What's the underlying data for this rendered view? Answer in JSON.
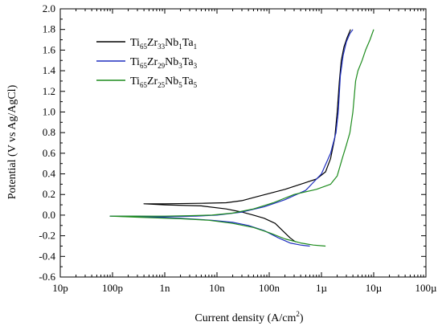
{
  "chart_data": {
    "type": "line",
    "title": "",
    "xlabel": "Current density (A/cm²)",
    "xlabel_main": "Current density (A/cm",
    "xlabel_sup": "2",
    "xlabel_end": ")",
    "ylabel": "Potential (V vs Ag/AgCl)",
    "x_scale": "log",
    "xlim": [
      1e-11,
      0.0001
    ],
    "ylim": [
      -0.6,
      2.0
    ],
    "x_ticks": [
      1e-11,
      1e-10,
      1e-09,
      1e-08,
      1e-07,
      1e-06,
      1e-05,
      0.0001
    ],
    "x_tick_labels": [
      "10p",
      "100p",
      "1n",
      "10n",
      "100n",
      "1µ",
      "10µ",
      "100µ"
    ],
    "y_ticks": [
      -0.6,
      -0.4,
      -0.2,
      0.0,
      0.2,
      0.4,
      0.6,
      0.8,
      1.0,
      1.2,
      1.4,
      1.6,
      1.8,
      2.0
    ],
    "y_tick_labels": [
      "-0.6",
      "-0.4",
      "-0.2",
      "0.0",
      "0.2",
      "0.4",
      "0.6",
      "0.8",
      "1.0",
      "1.2",
      "1.4",
      "1.6",
      "1.8",
      "2.0"
    ],
    "grid": false,
    "legend_position": "top-left",
    "series": [
      {
        "name": "Ti65Zr33Nb1Ta1",
        "legend": [
          [
            "Ti",
            "n"
          ],
          [
            "65",
            "s"
          ],
          [
            "Zr",
            "n"
          ],
          [
            "33",
            "s"
          ],
          [
            "Nb",
            "n"
          ],
          [
            "1",
            "s"
          ],
          [
            "Ta",
            "n"
          ],
          [
            "1",
            "s"
          ]
        ],
        "color": "#000000",
        "x": [
          3.2e-07,
          2.5e-07,
          1.8e-07,
          1.3e-07,
          8e-08,
          5e-08,
          3e-08,
          1.5e-08,
          5e-09,
          1e-09,
          4e-10,
          1e-09,
          5e-09,
          1.5e-08,
          3e-08,
          5e-08,
          1e-07,
          2e-07,
          4e-07,
          8e-07,
          1.2e-06,
          1.5e-06,
          1.8e-06,
          2e-06,
          2.2e-06,
          2.4e-06,
          2.7e-06,
          3.1e-06,
          3.6e-06
        ],
        "y": [
          -0.26,
          -0.22,
          -0.15,
          -0.08,
          -0.03,
          0.0,
          0.03,
          0.06,
          0.09,
          0.1,
          0.11,
          0.11,
          0.115,
          0.12,
          0.14,
          0.17,
          0.21,
          0.25,
          0.3,
          0.35,
          0.42,
          0.55,
          0.75,
          1.0,
          1.3,
          1.5,
          1.63,
          1.72,
          1.8
        ]
      },
      {
        "name": "Ti65Zr29Nb3Ta3",
        "legend": [
          [
            "Ti",
            "n"
          ],
          [
            "65",
            "s"
          ],
          [
            "Zr",
            "n"
          ],
          [
            "29",
            "s"
          ],
          [
            "Nb",
            "n"
          ],
          [
            "3",
            "s"
          ],
          [
            "Ta",
            "n"
          ],
          [
            "3",
            "s"
          ]
        ],
        "color": "#1f2fbf",
        "x": [
          6e-07,
          4e-07,
          2.5e-07,
          1.5e-07,
          8e-08,
          4e-08,
          2e-08,
          8e-09,
          2e-09,
          3e-10,
          9e-11,
          3e-10,
          1e-09,
          4e-09,
          1e-08,
          3e-08,
          8e-08,
          2e-07,
          5e-07,
          1e-06,
          1.5e-06,
          1.9e-06,
          2.1e-06,
          2.3e-06,
          2.6e-06,
          3e-06,
          3.5e-06,
          4e-06
        ],
        "y": [
          -0.3,
          -0.29,
          -0.27,
          -0.22,
          -0.15,
          -0.1,
          -0.07,
          -0.05,
          -0.03,
          -0.015,
          -0.01,
          -0.01,
          -0.015,
          -0.01,
          0.0,
          0.03,
          0.08,
          0.15,
          0.24,
          0.4,
          0.6,
          0.8,
          1.0,
          1.35,
          1.55,
          1.68,
          1.76,
          1.8
        ]
      },
      {
        "name": "Ti65Zr25Nb5Ta5",
        "legend": [
          [
            "Ti",
            "n"
          ],
          [
            "65",
            "s"
          ],
          [
            "Zr",
            "n"
          ],
          [
            "25",
            "s"
          ],
          [
            "Nb",
            "n"
          ],
          [
            "5",
            "s"
          ],
          [
            "Ta",
            "n"
          ],
          [
            "5",
            "s"
          ]
        ],
        "color": "#1e8c1e",
        "x": [
          1.2e-06,
          7e-07,
          4e-07,
          2e-07,
          1e-07,
          5e-08,
          2e-08,
          7e-09,
          2e-09,
          3e-10,
          9e-11,
          3e-10,
          1e-09,
          3e-09,
          8e-09,
          2e-08,
          5e-08,
          1.2e-07,
          3e-07,
          8e-07,
          1.5e-06,
          2e-06,
          2.5e-06,
          3e-06,
          3.5e-06,
          4e-06,
          4.5e-06,
          5e-06,
          6e-06,
          7e-06,
          8.5e-06,
          1e-05
        ],
        "y": [
          -0.3,
          -0.29,
          -0.27,
          -0.23,
          -0.17,
          -0.12,
          -0.08,
          -0.05,
          -0.035,
          -0.02,
          -0.01,
          -0.01,
          -0.01,
          -0.005,
          0.0,
          0.02,
          0.06,
          0.12,
          0.2,
          0.25,
          0.3,
          0.38,
          0.55,
          0.68,
          0.8,
          1.0,
          1.3,
          1.4,
          1.5,
          1.6,
          1.7,
          1.8
        ]
      }
    ]
  }
}
